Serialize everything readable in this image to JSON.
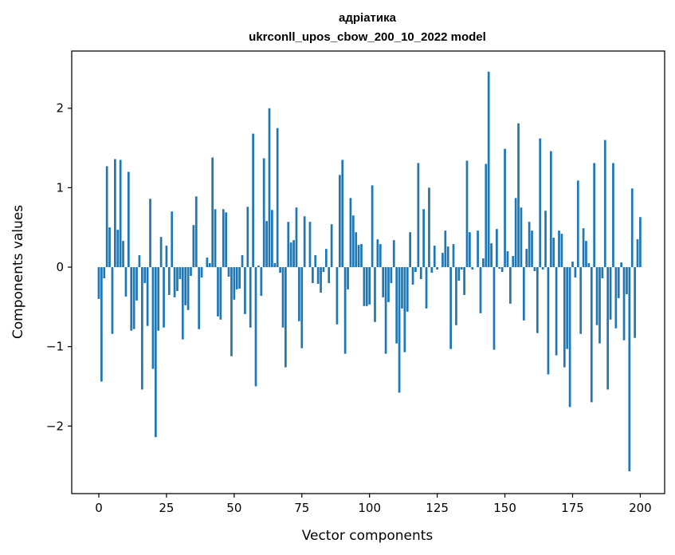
{
  "chart_data": {
    "type": "bar",
    "title_line1": "адріатика",
    "title_line2": "ukrconll_upos_cbow_200_10_2022 model",
    "xlabel": "Vector components",
    "ylabel": "Components values",
    "xlim": [
      -10,
      209
    ],
    "ylim": [
      -2.85,
      2.72
    ],
    "xticks": [
      0,
      25,
      50,
      75,
      100,
      125,
      150,
      175,
      200
    ],
    "yticks": [
      -2,
      -1,
      0,
      1,
      2
    ],
    "ytick_labels": [
      "−2",
      "−1",
      "0",
      "1",
      "2"
    ],
    "bar_color": "#1f77b4",
    "values": [
      -0.4,
      -1.44,
      -0.14,
      1.27,
      0.5,
      -0.84,
      1.36,
      0.47,
      1.35,
      0.33,
      -0.37,
      1.2,
      -0.8,
      -0.78,
      -0.42,
      0.15,
      -1.54,
      -0.2,
      -0.74,
      0.86,
      -1.28,
      -2.14,
      -0.8,
      0.38,
      -0.76,
      0.27,
      -0.35,
      0.7,
      -0.38,
      -0.3,
      -0.15,
      -0.91,
      -0.48,
      -0.54,
      -0.11,
      0.53,
      0.89,
      -0.78,
      -0.13,
      0.0,
      0.12,
      0.05,
      1.38,
      0.73,
      -0.62,
      -0.66,
      0.73,
      0.69,
      -0.12,
      -1.12,
      -0.41,
      -0.28,
      -0.27,
      0.15,
      -0.59,
      0.76,
      -0.76,
      1.68,
      -1.5,
      0.02,
      -0.36,
      1.37,
      0.58,
      2.0,
      0.72,
      0.05,
      1.75,
      -0.07,
      -0.76,
      -1.26,
      0.57,
      0.31,
      0.34,
      0.75,
      -0.68,
      -1.02,
      0.64,
      0.0,
      0.57,
      -0.2,
      0.15,
      -0.21,
      -0.32,
      -0.06,
      0.23,
      -0.2,
      0.54,
      0.0,
      -0.72,
      1.16,
      1.35,
      -1.09,
      -0.28,
      0.87,
      0.65,
      0.44,
      0.28,
      0.29,
      -0.49,
      -0.49,
      -0.47,
      1.03,
      -0.69,
      0.35,
      0.29,
      -0.38,
      -1.09,
      -0.44,
      -0.2,
      0.34,
      -0.96,
      -1.58,
      -0.52,
      -1.07,
      -0.56,
      0.44,
      -0.22,
      -0.06,
      1.31,
      -0.15,
      0.73,
      -0.52,
      1.0,
      -0.07,
      0.27,
      -0.03,
      0.0,
      0.18,
      0.46,
      0.26,
      -1.03,
      0.29,
      -0.73,
      -0.17,
      -0.03,
      -0.35,
      1.34,
      0.44,
      -0.03,
      0.0,
      0.46,
      -0.58,
      0.11,
      1.3,
      2.46,
      0.3,
      -1.04,
      0.48,
      -0.02,
      -0.06,
      1.49,
      0.2,
      -0.46,
      0.14,
      0.87,
      1.81,
      0.75,
      -0.67,
      0.23,
      0.57,
      0.46,
      -0.05,
      -0.83,
      1.62,
      -0.03,
      0.71,
      -1.35,
      1.46,
      0.37,
      -1.11,
      0.46,
      0.42,
      -1.26,
      -1.03,
      -1.76,
      0.07,
      -0.13,
      1.09,
      -0.84,
      0.49,
      0.33,
      0.05,
      -1.7,
      1.31,
      -0.73,
      -0.96,
      -0.14,
      1.6,
      -1.54,
      -0.66,
      1.31,
      -0.77,
      -0.39,
      0.06,
      -0.92,
      -0.34,
      -2.57,
      0.99,
      -0.89,
      0.35,
      0.63
    ]
  }
}
